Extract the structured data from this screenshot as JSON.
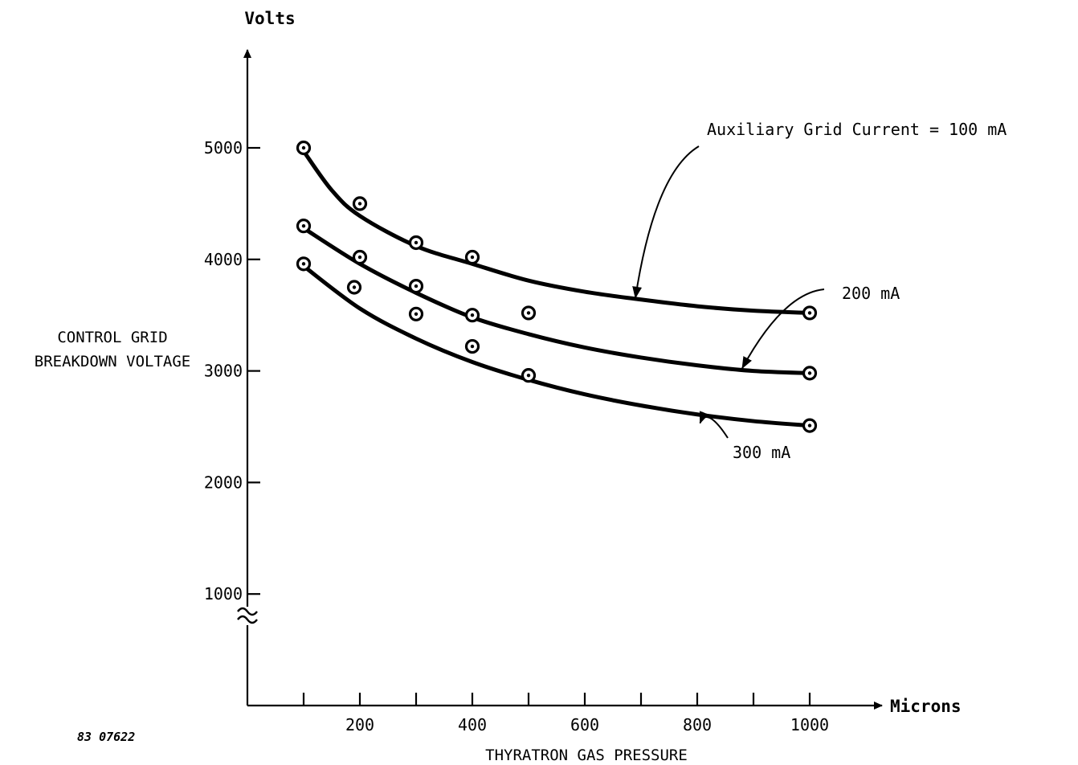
{
  "figure_number": "83 07622",
  "chart_data": {
    "type": "line",
    "ylabel_lines": [
      "CONTROL GRID",
      "BREAKDOWN VOLTAGE"
    ],
    "yunit": "Volts",
    "xlabel": "THYRATRON GAS PRESSURE",
    "xunit": "Microns",
    "xlim": [
      0,
      1100
    ],
    "ylim": [
      0,
      5500
    ],
    "y_axis_break": true,
    "x_ticks": [
      100,
      200,
      300,
      400,
      500,
      600,
      700,
      800,
      900,
      1000
    ],
    "x_tick_labels": [
      {
        "value": 200,
        "label": "200"
      },
      {
        "value": 400,
        "label": "400"
      },
      {
        "value": 600,
        "label": "600"
      },
      {
        "value": 800,
        "label": "800"
      },
      {
        "value": 1000,
        "label": "1000"
      }
    ],
    "y_ticks": [
      {
        "value": 1000,
        "label": "1000"
      },
      {
        "value": 2000,
        "label": "2000"
      },
      {
        "value": 3000,
        "label": "3000"
      },
      {
        "value": 4000,
        "label": "4000"
      },
      {
        "value": 5000,
        "label": "5000"
      }
    ],
    "grid": false,
    "series": [
      {
        "name": "Auxiliary Grid Current = 100 mA",
        "points": [
          {
            "x": 100,
            "y": 5000
          },
          {
            "x": 200,
            "y": 4500
          },
          {
            "x": 300,
            "y": 4150
          },
          {
            "x": 400,
            "y": 4020
          },
          {
            "x": 1000,
            "y": 3520
          }
        ],
        "fit": [
          {
            "x": 100,
            "y": 4970
          },
          {
            "x": 150,
            "y": 4620
          },
          {
            "x": 200,
            "y": 4390
          },
          {
            "x": 300,
            "y": 4120
          },
          {
            "x": 400,
            "y": 3960
          },
          {
            "x": 500,
            "y": 3810
          },
          {
            "x": 600,
            "y": 3710
          },
          {
            "x": 700,
            "y": 3640
          },
          {
            "x": 800,
            "y": 3580
          },
          {
            "x": 900,
            "y": 3540
          },
          {
            "x": 1000,
            "y": 3520
          }
        ]
      },
      {
        "name": "200 mA",
        "points": [
          {
            "x": 100,
            "y": 4300
          },
          {
            "x": 200,
            "y": 4020
          },
          {
            "x": 300,
            "y": 3760
          },
          {
            "x": 300,
            "y": 3510
          },
          {
            "x": 400,
            "y": 3500
          },
          {
            "x": 500,
            "y": 3520
          },
          {
            "x": 1000,
            "y": 2980
          }
        ],
        "fit": [
          {
            "x": 100,
            "y": 4280
          },
          {
            "x": 200,
            "y": 3960
          },
          {
            "x": 300,
            "y": 3700
          },
          {
            "x": 400,
            "y": 3480
          },
          {
            "x": 500,
            "y": 3330
          },
          {
            "x": 600,
            "y": 3210
          },
          {
            "x": 700,
            "y": 3120
          },
          {
            "x": 800,
            "y": 3050
          },
          {
            "x": 900,
            "y": 3000
          },
          {
            "x": 1000,
            "y": 2980
          }
        ]
      },
      {
        "name": "300 mA",
        "points": [
          {
            "x": 100,
            "y": 3960
          },
          {
            "x": 190,
            "y": 3750
          },
          {
            "x": 400,
            "y": 3220
          },
          {
            "x": 500,
            "y": 2960
          },
          {
            "x": 1000,
            "y": 2510
          }
        ],
        "fit": [
          {
            "x": 100,
            "y": 3940
          },
          {
            "x": 200,
            "y": 3560
          },
          {
            "x": 300,
            "y": 3290
          },
          {
            "x": 400,
            "y": 3080
          },
          {
            "x": 500,
            "y": 2920
          },
          {
            "x": 600,
            "y": 2790
          },
          {
            "x": 700,
            "y": 2690
          },
          {
            "x": 800,
            "y": 2610
          },
          {
            "x": 900,
            "y": 2550
          },
          {
            "x": 1000,
            "y": 2510
          }
        ]
      }
    ],
    "annotations": [
      {
        "series": 0,
        "text": "Auxiliary Grid Current = 100 mA",
        "arrow_to": {
          "x": 690,
          "y": 3640
        }
      },
      {
        "series": 1,
        "text": "200 mA",
        "arrow_to": {
          "x": 880,
          "y": 3010
        }
      },
      {
        "series": 2,
        "text": "300 mA",
        "arrow_to": {
          "x": 805,
          "y": 2590
        }
      }
    ]
  }
}
